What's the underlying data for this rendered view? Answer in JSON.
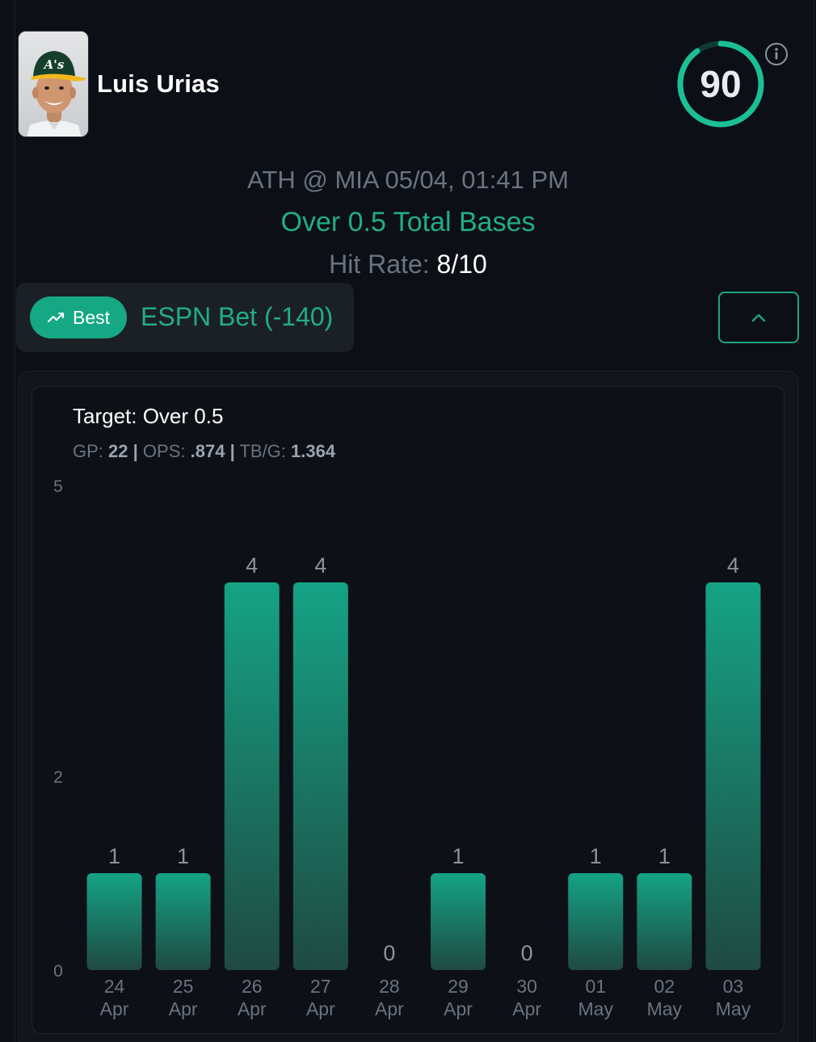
{
  "player": {
    "name": "Luis Urias",
    "score": "90"
  },
  "game": {
    "matchup": "ATH @ MIA 05/04, 01:41 PM",
    "market": "Over 0.5 Total Bases",
    "hit_rate_label": "Hit Rate:",
    "hit_rate_value": "8/10"
  },
  "book": {
    "badge": "Best",
    "name": "ESPN Bet (-140)"
  },
  "icons": {
    "info": "info-icon",
    "trend": "trending-up-icon",
    "collapse": "chevron-up-icon"
  },
  "colors": {
    "accent": "#21ad8a",
    "bar_top": "#15a385",
    "bar_bottom": "#1f4a42",
    "muted": "#6a7381"
  },
  "summary": {
    "target": "Target: Over 0.5",
    "gp_label": "GP:",
    "gp": "22",
    "ops_label": "OPS:",
    "ops": ".874",
    "tbg_label": "TB/G:",
    "tbg": "1.364",
    "sep": "|"
  },
  "chart_data": {
    "type": "bar",
    "title": "",
    "xlabel": "",
    "ylabel": "",
    "ylim": [
      0,
      5
    ],
    "yticks": [
      0,
      2,
      5
    ],
    "categories": [
      {
        "day": "24",
        "month": "Apr"
      },
      {
        "day": "25",
        "month": "Apr"
      },
      {
        "day": "26",
        "month": "Apr"
      },
      {
        "day": "27",
        "month": "Apr"
      },
      {
        "day": "28",
        "month": "Apr"
      },
      {
        "day": "29",
        "month": "Apr"
      },
      {
        "day": "30",
        "month": "Apr"
      },
      {
        "day": "01",
        "month": "May"
      },
      {
        "day": "02",
        "month": "May"
      },
      {
        "day": "03",
        "month": "May"
      }
    ],
    "values": [
      1,
      1,
      4,
      4,
      0,
      1,
      0,
      1,
      1,
      4
    ]
  }
}
